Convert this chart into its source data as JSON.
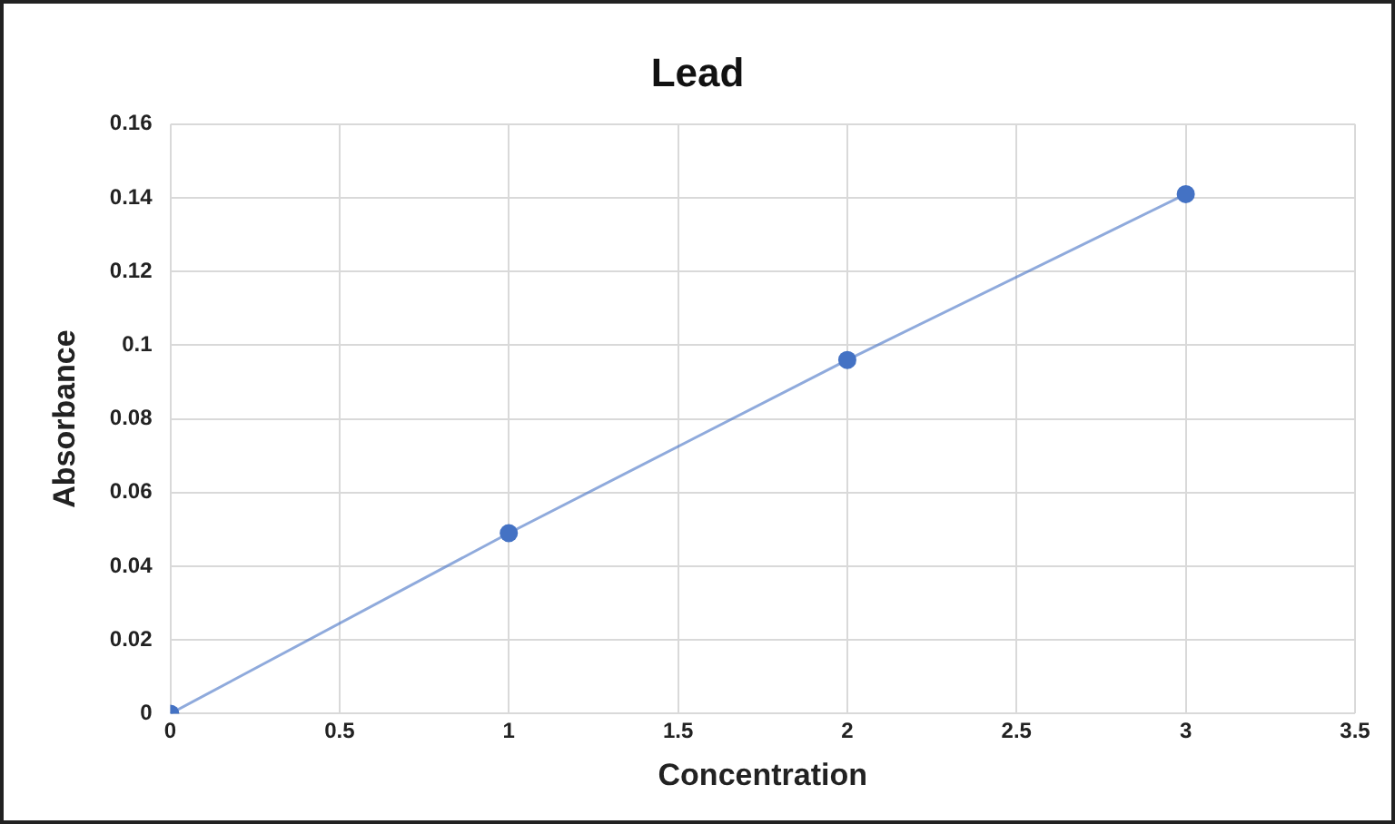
{
  "chart_data": {
    "type": "line",
    "title": "Lead",
    "xlabel": "Concentration",
    "ylabel": "Absorbance",
    "x": [
      0,
      1,
      2,
      3
    ],
    "series": [
      {
        "color": "#4472c4",
        "values": [
          0,
          0.049,
          0.096,
          0.141
        ]
      }
    ],
    "xlim": [
      0,
      3.5
    ],
    "xticks": [
      0,
      0.5,
      1,
      1.5,
      2,
      2.5,
      3,
      3.5
    ],
    "ylim": [
      0,
      0.16
    ],
    "yticks": [
      0,
      0.02,
      0.04,
      0.06,
      0.08,
      0.1,
      0.12,
      0.14,
      0.16
    ],
    "grid": true,
    "legend": false,
    "marker": "circle",
    "line_style": "solid"
  }
}
